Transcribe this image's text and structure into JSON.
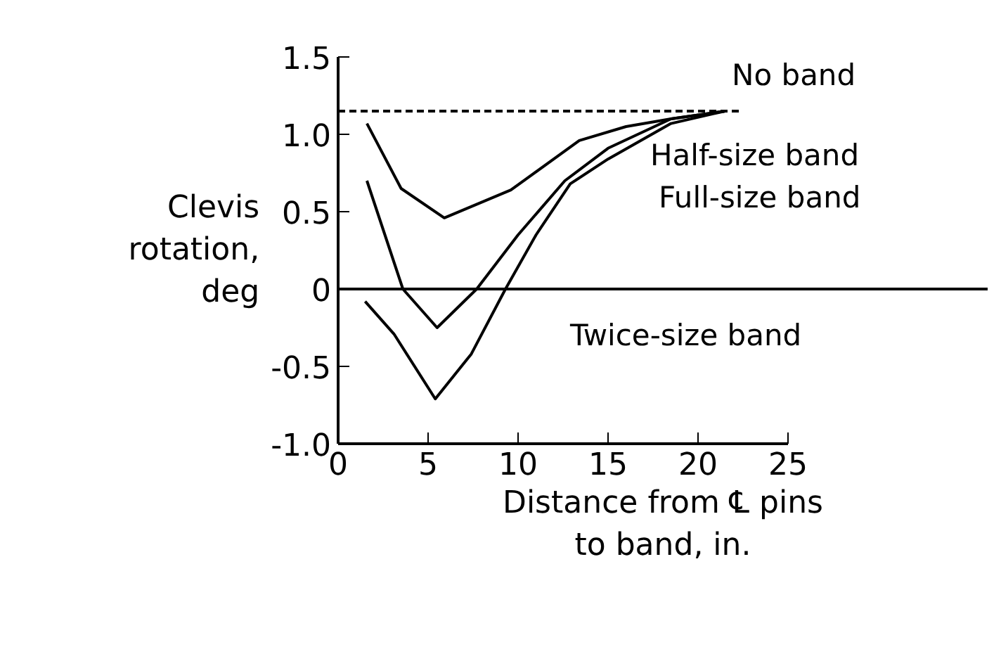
{
  "chart_data": {
    "type": "line",
    "xlabel": "Distance from ℄ pins to band, in.",
    "ylabel": "Clevis rotation, deg",
    "xlim": [
      0,
      25
    ],
    "ylim": [
      -1.0,
      1.5
    ],
    "xticks": [
      0,
      5,
      10,
      15,
      20,
      25
    ],
    "yticks": [
      {
        "value": -1.0,
        "label": "-1.0"
      },
      {
        "value": -0.5,
        "label": "-0.5"
      },
      0,
      {
        "value": 0.5,
        "label": "0.5"
      },
      {
        "value": 1.0,
        "label": "1.0"
      },
      {
        "value": 1.5,
        "label": "1.5"
      }
    ],
    "grid": false,
    "marker": "none",
    "line_style": "solid",
    "ref_lines": [
      {
        "axis": "y",
        "value": 0,
        "color": "#000000"
      }
    ],
    "series": [
      {
        "color": "#000000",
        "line_style": "dashed",
        "x": [
          0,
          22.5
        ],
        "values": [
          1.15,
          1.15
        ]
      },
      {
        "color": "#000000",
        "x": [
          1.6,
          3.5,
          5.9,
          9.6,
          13.4,
          16,
          18.5,
          21.5
        ],
        "values": [
          1.07,
          0.65,
          0.46,
          0.64,
          0.96,
          1.05,
          1.1,
          1.15
        ]
      },
      {
        "color": "#000000",
        "x": [
          1.6,
          3.6,
          5.5,
          7.7,
          10,
          12.6,
          15.0,
          18.5,
          21.5
        ],
        "values": [
          0.7,
          0.0,
          -0.25,
          0.0,
          0.35,
          0.7,
          0.91,
          1.1,
          1.15
        ]
      },
      {
        "color": "#000000",
        "x": [
          1.5,
          3.1,
          5.4,
          7.4,
          9.3,
          11,
          12.9,
          15.0,
          18.5,
          21.5
        ],
        "values": [
          -0.08,
          -0.29,
          -0.71,
          -0.42,
          0.0,
          0.35,
          0.68,
          0.84,
          1.07,
          1.15
        ]
      }
    ],
    "annotations": [
      "No band",
      "Half-size band",
      "Full-size band",
      "Twice-size band"
    ]
  }
}
